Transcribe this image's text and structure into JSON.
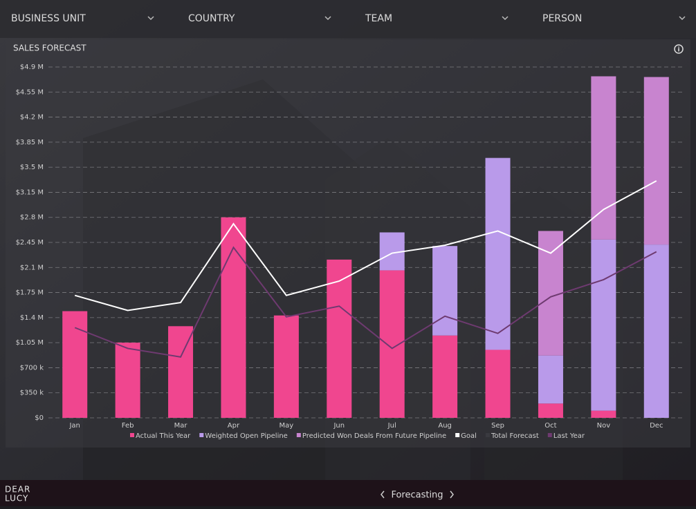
{
  "filters": [
    "BUSINESS UNIT",
    "COUNTRY",
    "TEAM",
    "PERSON"
  ],
  "chart_data": {
    "type": "bar",
    "title": "SALES FORECAST",
    "categories": [
      "Jan",
      "Feb",
      "Mar",
      "Apr",
      "May",
      "Jun",
      "Jul",
      "Aug",
      "Sep",
      "Oct",
      "Nov",
      "Dec"
    ],
    "series": [
      {
        "name": "Actual This Year",
        "type": "bar",
        "color": "#f0468f",
        "values": [
          1490000,
          1050000,
          1280000,
          2800000,
          1430000,
          2210000,
          2060000,
          1150000,
          950000,
          200000,
          100000,
          0
        ]
      },
      {
        "name": "Weighted Open Pipeline",
        "type": "bar",
        "color": "#b99aea",
        "values": [
          0,
          0,
          0,
          0,
          0,
          0,
          530000,
          1250000,
          2680000,
          670000,
          2390000,
          2420000
        ]
      },
      {
        "name": "Predicted Won Deals From Future Pipeline",
        "type": "bar",
        "color": "#c884cf",
        "values": [
          0,
          0,
          0,
          0,
          0,
          0,
          0,
          0,
          0,
          1740000,
          2280000,
          2340000
        ]
      },
      {
        "name": "Goal",
        "type": "line",
        "color": "#ffffff",
        "values": [
          1710000,
          1500000,
          1610000,
          2710000,
          1710000,
          1910000,
          2300000,
          2410000,
          2610000,
          2300000,
          2910000,
          3310000
        ]
      },
      {
        "name": "Total Forecast",
        "type": "line",
        "color": "#3a3a40",
        "values": [
          null,
          null,
          null,
          null,
          null,
          null,
          null,
          null,
          null,
          null,
          null,
          null
        ]
      },
      {
        "name": "Last Year",
        "type": "line",
        "color": "#6e3a70",
        "values": [
          1260000,
          970000,
          850000,
          2380000,
          1410000,
          1560000,
          970000,
          1420000,
          1180000,
          1690000,
          1930000,
          2320000
        ]
      }
    ],
    "stacked": true,
    "ylim": [
      0,
      4900000
    ],
    "yticks": [
      {
        "value": 0,
        "label": "$0"
      },
      {
        "value": 350000,
        "label": "$350 k"
      },
      {
        "value": 700000,
        "label": "$700 k"
      },
      {
        "value": 1050000,
        "label": "$1.05 M"
      },
      {
        "value": 1400000,
        "label": "$1.4 M"
      },
      {
        "value": 1750000,
        "label": "$1.75 M"
      },
      {
        "value": 2100000,
        "label": "$2.1 M"
      },
      {
        "value": 2450000,
        "label": "$2.45 M"
      },
      {
        "value": 2800000,
        "label": "$2.8 M"
      },
      {
        "value": 3150000,
        "label": "$3.15 M"
      },
      {
        "value": 3500000,
        "label": "$3.5 M"
      },
      {
        "value": 3850000,
        "label": "$3.85 M"
      },
      {
        "value": 4200000,
        "label": "$4.2 M"
      },
      {
        "value": 4550000,
        "label": "$4.55 M"
      },
      {
        "value": 4900000,
        "label": "$4.9 M"
      }
    ],
    "grid": true
  },
  "footer": {
    "logo": [
      "DEAR",
      "LUCY"
    ],
    "nav": "Forecasting"
  }
}
